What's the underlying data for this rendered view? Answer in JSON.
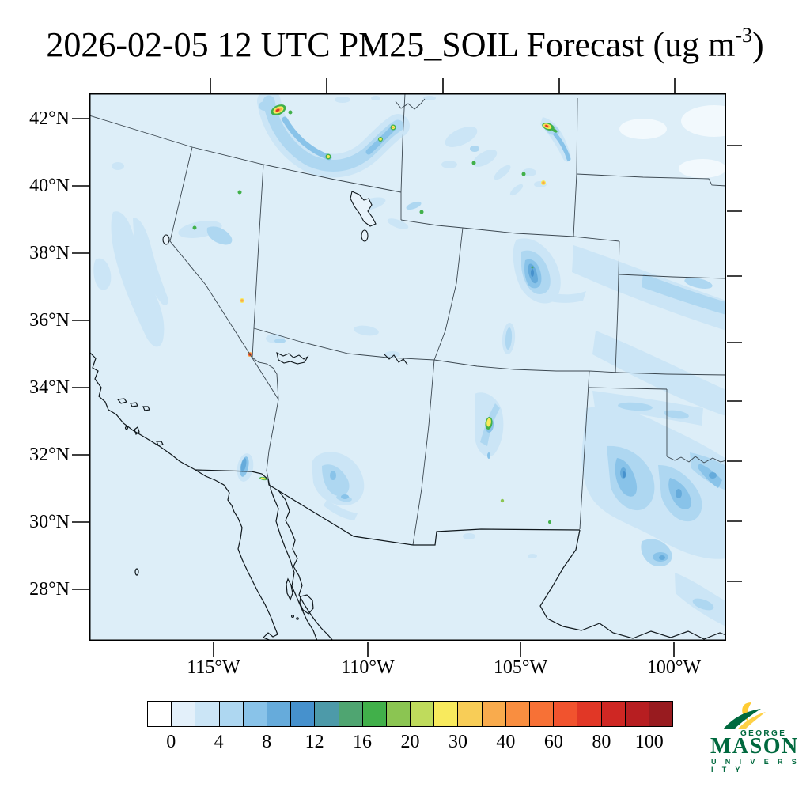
{
  "title": {
    "main": "2026-02-05 12 UTC PM25_SOIL Forecast (ug m",
    "sup": "-3",
    "end": ")"
  },
  "axes": {
    "lat_labels": [
      "42°N",
      "40°N",
      "38°N",
      "36°N",
      "34°N",
      "32°N",
      "30°N",
      "28°N"
    ],
    "lon_labels": [
      "115°W",
      "110°W",
      "105°W",
      "100°W"
    ]
  },
  "colorbar": {
    "labels": [
      "0",
      "4",
      "8",
      "12",
      "16",
      "20",
      "30",
      "40",
      "60",
      "80",
      "100"
    ],
    "label_boundaries": [
      1,
      3,
      5,
      7,
      9,
      11,
      13,
      15,
      17,
      19,
      21
    ],
    "cells": [
      "#ffffff",
      "#e3f0fa",
      "#cbe5f6",
      "#aed7f1",
      "#89c3e9",
      "#66abdb",
      "#4691cd",
      "#4d9aa9",
      "#4fa571",
      "#41b04a",
      "#8bc552",
      "#bfdb5c",
      "#f8ea5d",
      "#f8cd57",
      "#f9ab4d",
      "#f98e40",
      "#f77136",
      "#f1532e",
      "#e13726",
      "#cf2723",
      "#b71e21",
      "#981b1f"
    ]
  },
  "logo": {
    "george": "GEORGE",
    "mason": "MASON",
    "university": "U N I V E R S I T Y",
    "green": "#00693e",
    "gold": "#ffcc33"
  },
  "chart_data": {
    "type": "heatmap",
    "title": "2026-02-05 12 UTC PM25_SOIL Forecast (ug m-3)",
    "variable": "PM25_SOIL",
    "units": "ug m-3",
    "valid_time": "2026-02-05 12 UTC",
    "region": "Southwestern United States and northern Mexico (CA, NV, UT, AZ, CO, NM, WY, west TX shown with state borders and coastline)",
    "projection": "regional conic map, lat/lon ticks on frame",
    "lat_ticks_deg_N": [
      42,
      40,
      38,
      36,
      34,
      32,
      30,
      28
    ],
    "lon_ticks_deg_W": [
      115,
      110,
      105,
      100
    ],
    "colorbar_levels": [
      0,
      2,
      4,
      6,
      8,
      10,
      12,
      14,
      16,
      18,
      20,
      25,
      30,
      35,
      40,
      50,
      60,
      70,
      80,
      90,
      100
    ],
    "colorbar_labeled_levels": [
      0,
      4,
      8,
      12,
      16,
      20,
      30,
      40,
      60,
      80,
      100
    ],
    "background_field_value": "mostly 0-2 ug m-3 (pale blue) everywhere",
    "hotspots_approx": [
      {
        "lat": 42.2,
        "lon_w": 113.2,
        "peak": ">60",
        "note": "strong source, Idaho/Utah border, red core with yellow-green ring"
      },
      {
        "lat": 41.7,
        "lon_w": 104.3,
        "peak": ">60",
        "note": "strong source SE Wyoming, red core, plume trailing southeast"
      },
      {
        "lat": 41.6,
        "lon_w": 111.5,
        "peak": "4-12",
        "note": "arc of enhanced values (Snake River Plain) with small 20-40 specks"
      },
      {
        "lat": 40.9,
        "lon_w": 104.4,
        "peak": "30-40",
        "note": "small orange-yellow speck"
      },
      {
        "lat": 41.2,
        "lon_w": 105.0,
        "peak": "16-20",
        "note": "small green speck"
      },
      {
        "lat": 39.6,
        "lon_w": 108.2,
        "peak": "16-20",
        "note": "small green speck west Utah"
      },
      {
        "lat": 41.3,
        "lon_w": 106.5,
        "peak": "16-20",
        "note": "small green speck Wyoming"
      },
      {
        "lat": 39.8,
        "lon_w": 114.2,
        "peak": "16-20",
        "note": "small green speck N Nevada"
      },
      {
        "lat": 38.4,
        "lon_w": 115.6,
        "peak": "16-20",
        "note": "small green speck near Pyramid Lake"
      },
      {
        "lat": 36.1,
        "lon_w": 114.1,
        "peak": "30-40",
        "note": "small orange speck"
      },
      {
        "lat": 35.0,
        "lon_w": 113.9,
        "peak": "60-80",
        "note": "small red-orange speck on CA/NV border line"
      },
      {
        "lat": 32.9,
        "lon_w": 106.0,
        "peak": "25-30",
        "note": "yellow blob with green rim, south-central New Mexico (White Sands area)"
      },
      {
        "lat": 32.4,
        "lon_w": 114.8,
        "peak": "25-30",
        "note": "yellow dash at Mexicali/border"
      },
      {
        "lat": 30.6,
        "lon_w": 105.6,
        "peak": "18-25",
        "note": "tiny yellow-green speck"
      },
      {
        "lat": 30.0,
        "lon_w": 104.2,
        "peak": "16-20",
        "note": "tiny green speck"
      }
    ],
    "enhanced_regions_approx": [
      {
        "name": "SE New Mexico / West Texas",
        "value": "2-10",
        "note": "large multi-lobed blue region"
      },
      {
        "name": "SE Colorado blob",
        "value": "4-10",
        "note": "compact dark blue blob with fan to east"
      },
      {
        "name": "Kansas / Nebraska bands",
        "value": "2-6",
        "note": "diagonal light blue bands to map edge"
      },
      {
        "name": "California Central Valley / Sierra streaks",
        "value": "2-4"
      },
      {
        "name": "Arizona south-central patch",
        "value": "2-8",
        "note": "includes Salton Sea dark sliver to the west"
      }
    ]
  }
}
